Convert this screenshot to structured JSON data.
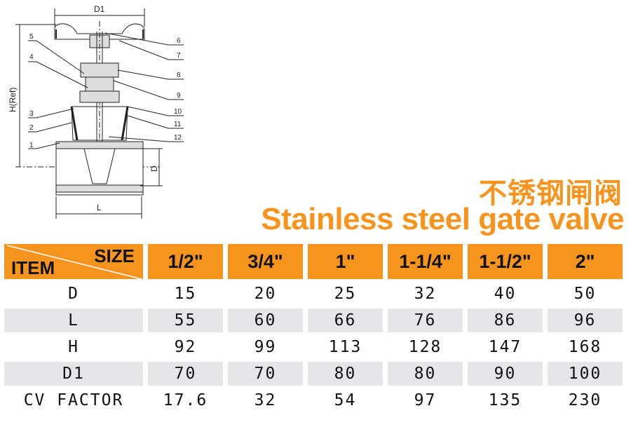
{
  "diagram": {
    "dimensions": {
      "d1": "D1",
      "h": "H(Ref)",
      "d": "D",
      "l": "L"
    },
    "part_numbers": [
      "1",
      "2",
      "3",
      "4",
      "5",
      "6",
      "7",
      "8",
      "9",
      "10",
      "11",
      "12"
    ]
  },
  "title": {
    "chinese": "不锈钢闸阀",
    "english": "Stainless steel gate valve"
  },
  "table": {
    "corner": {
      "size": "SIZE",
      "item": "ITEM"
    },
    "sizes": [
      "1/2\"",
      "3/4\"",
      "1\"",
      "1-1/4\"",
      "1-1/2\"",
      "2\""
    ],
    "rows": [
      {
        "item": "D",
        "values": [
          "15",
          "20",
          "25",
          "32",
          "40",
          "50"
        ]
      },
      {
        "item": "L",
        "values": [
          "55",
          "60",
          "66",
          "76",
          "86",
          "96"
        ]
      },
      {
        "item": "H",
        "values": [
          "92",
          "99",
          "113",
          "128",
          "147",
          "168"
        ]
      },
      {
        "item": "D1",
        "values": [
          "70",
          "70",
          "80",
          "80",
          "90",
          "100"
        ]
      },
      {
        "item": "CV FACTOR",
        "values": [
          "17.6",
          "32",
          "54",
          "97",
          "135",
          "230"
        ]
      }
    ]
  },
  "colors": {
    "accent": "#f7941d",
    "row_alt": "#e6e6e8"
  }
}
